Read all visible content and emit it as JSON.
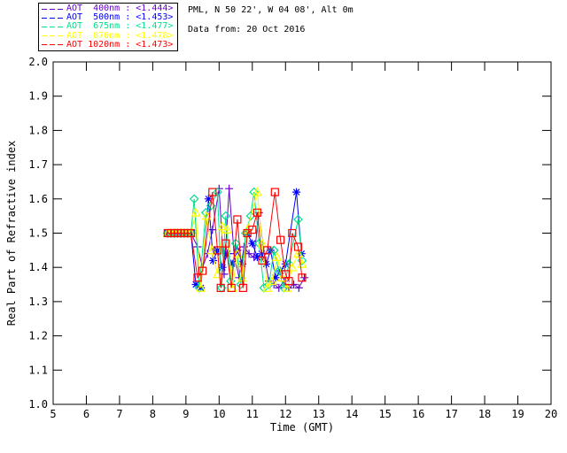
{
  "header": {
    "site_line": "PML, N 50 22', W 04 08', Alt 0m",
    "date_line": "Data from: 20 Oct 2016"
  },
  "chart_data": {
    "type": "line",
    "title": "",
    "xlabel": "Time (GMT)",
    "ylabel": "Real Part of Refractive index",
    "xlim": [
      5,
      20
    ],
    "ylim": [
      1.0,
      2.0
    ],
    "x_ticks": [
      5,
      6,
      7,
      8,
      9,
      10,
      11,
      12,
      13,
      14,
      15,
      16,
      17,
      18,
      19,
      20
    ],
    "y_ticks": [
      1.0,
      1.1,
      1.2,
      1.3,
      1.4,
      1.5,
      1.6,
      1.7,
      1.8,
      1.9,
      2.0
    ],
    "grid": false,
    "legend_position": "top-left-outside",
    "axis_color": "#000000",
    "background_color": "#ffffff",
    "series": [
      {
        "label": "AOT  400nm",
        "legend_value": "<1.444>",
        "color": "#6600cc",
        "marker": "plus",
        "points": [
          [
            8.45,
            1.5
          ],
          [
            8.55,
            1.5
          ],
          [
            8.65,
            1.5
          ],
          [
            8.75,
            1.5
          ],
          [
            8.85,
            1.5
          ],
          [
            8.95,
            1.5
          ],
          [
            9.05,
            1.5
          ],
          [
            9.15,
            1.5
          ],
          [
            9.35,
            1.46
          ],
          [
            9.5,
            1.4
          ],
          [
            9.65,
            1.44
          ],
          [
            9.8,
            1.51
          ],
          [
            10.0,
            1.63
          ],
          [
            10.15,
            1.38
          ],
          [
            10.3,
            1.63
          ],
          [
            10.45,
            1.44
          ],
          [
            10.6,
            1.37
          ],
          [
            10.75,
            1.46
          ],
          [
            10.9,
            1.44
          ],
          [
            11.05,
            1.43
          ],
          [
            11.2,
            1.56
          ],
          [
            11.35,
            1.44
          ],
          [
            11.5,
            1.36
          ],
          [
            11.65,
            1.35
          ],
          [
            11.8,
            1.34
          ],
          [
            11.95,
            1.36
          ],
          [
            12.1,
            1.34
          ],
          [
            12.25,
            1.35
          ],
          [
            12.4,
            1.34
          ],
          [
            12.57,
            1.37
          ]
        ]
      },
      {
        "label": "AOT  500nm",
        "legend_value": "<1.453>",
        "color": "#0000ff",
        "marker": "asterisk",
        "points": [
          [
            8.45,
            1.5
          ],
          [
            8.55,
            1.5
          ],
          [
            8.65,
            1.5
          ],
          [
            8.75,
            1.5
          ],
          [
            8.85,
            1.5
          ],
          [
            8.95,
            1.5
          ],
          [
            9.05,
            1.5
          ],
          [
            9.15,
            1.5
          ],
          [
            9.3,
            1.35
          ],
          [
            9.45,
            1.34
          ],
          [
            9.68,
            1.6
          ],
          [
            9.82,
            1.42
          ],
          [
            9.95,
            1.45
          ],
          [
            10.1,
            1.4
          ],
          [
            10.25,
            1.44
          ],
          [
            10.4,
            1.41
          ],
          [
            10.55,
            1.45
          ],
          [
            10.7,
            1.41
          ],
          [
            10.85,
            1.5
          ],
          [
            11.0,
            1.47
          ],
          [
            11.15,
            1.43
          ],
          [
            11.28,
            1.44
          ],
          [
            11.42,
            1.41
          ],
          [
            11.55,
            1.45
          ],
          [
            11.7,
            1.37
          ],
          [
            11.85,
            1.39
          ],
          [
            12.0,
            1.41
          ],
          [
            12.33,
            1.62
          ],
          [
            12.48,
            1.44
          ]
        ]
      },
      {
        "label": "AOT  675nm",
        "legend_value": "<1.477>",
        "color": "#00e08c",
        "marker": "diamond",
        "points": [
          [
            8.45,
            1.5
          ],
          [
            8.55,
            1.5
          ],
          [
            8.65,
            1.5
          ],
          [
            8.75,
            1.5
          ],
          [
            8.85,
            1.5
          ],
          [
            8.95,
            1.5
          ],
          [
            9.05,
            1.5
          ],
          [
            9.15,
            1.5
          ],
          [
            9.25,
            1.6
          ],
          [
            9.4,
            1.34
          ],
          [
            9.6,
            1.56
          ],
          [
            9.75,
            1.58
          ],
          [
            9.95,
            1.62
          ],
          [
            10.07,
            1.34
          ],
          [
            10.2,
            1.55
          ],
          [
            10.35,
            1.36
          ],
          [
            10.5,
            1.47
          ],
          [
            10.65,
            1.35
          ],
          [
            10.8,
            1.5
          ],
          [
            10.95,
            1.55
          ],
          [
            11.05,
            1.62
          ],
          [
            11.2,
            1.47
          ],
          [
            11.35,
            1.34
          ],
          [
            11.5,
            1.35
          ],
          [
            11.65,
            1.45
          ],
          [
            11.8,
            1.39
          ],
          [
            11.95,
            1.34
          ],
          [
            12.1,
            1.41
          ],
          [
            12.38,
            1.54
          ],
          [
            12.5,
            1.42
          ]
        ]
      },
      {
        "label": "AOT  870nm",
        "legend_value": "<1.478>",
        "color": "#ffff00",
        "marker": "triangle",
        "points": [
          [
            8.45,
            1.5
          ],
          [
            8.55,
            1.5
          ],
          [
            8.65,
            1.5
          ],
          [
            8.75,
            1.5
          ],
          [
            8.85,
            1.5
          ],
          [
            8.95,
            1.5
          ],
          [
            9.05,
            1.5
          ],
          [
            9.15,
            1.5
          ],
          [
            9.3,
            1.56
          ],
          [
            9.45,
            1.34
          ],
          [
            9.62,
            1.55
          ],
          [
            9.78,
            1.45
          ],
          [
            9.95,
            1.38
          ],
          [
            10.1,
            1.52
          ],
          [
            10.25,
            1.51
          ],
          [
            10.4,
            1.34
          ],
          [
            10.55,
            1.44
          ],
          [
            10.7,
            1.37
          ],
          [
            10.85,
            1.51
          ],
          [
            11.15,
            1.62
          ],
          [
            11.3,
            1.47
          ],
          [
            11.45,
            1.34
          ],
          [
            11.6,
            1.36
          ],
          [
            11.75,
            1.43
          ],
          [
            11.9,
            1.37
          ],
          [
            12.05,
            1.34
          ],
          [
            12.2,
            1.4
          ],
          [
            12.38,
            1.44
          ],
          [
            12.5,
            1.41
          ]
        ]
      },
      {
        "label": "AOT 1020nm",
        "legend_value": "<1.473>",
        "color": "#ff0000",
        "marker": "square",
        "points": [
          [
            8.45,
            1.5
          ],
          [
            8.55,
            1.5
          ],
          [
            8.65,
            1.5
          ],
          [
            8.75,
            1.5
          ],
          [
            8.85,
            1.5
          ],
          [
            8.95,
            1.5
          ],
          [
            9.05,
            1.5
          ],
          [
            9.15,
            1.5
          ],
          [
            9.35,
            1.37
          ],
          [
            9.5,
            1.39
          ],
          [
            9.8,
            1.62
          ],
          [
            9.95,
            1.45
          ],
          [
            10.05,
            1.34
          ],
          [
            10.2,
            1.47
          ],
          [
            10.37,
            1.34
          ],
          [
            10.55,
            1.54
          ],
          [
            10.72,
            1.34
          ],
          [
            10.85,
            1.5
          ],
          [
            11.0,
            1.51
          ],
          [
            11.15,
            1.56
          ],
          [
            11.3,
            1.42
          ],
          [
            11.45,
            1.45
          ],
          [
            11.68,
            1.62
          ],
          [
            11.85,
            1.48
          ],
          [
            12.0,
            1.38
          ],
          [
            12.1,
            1.36
          ],
          [
            12.2,
            1.5
          ],
          [
            12.38,
            1.46
          ],
          [
            12.5,
            1.37
          ]
        ]
      }
    ]
  }
}
